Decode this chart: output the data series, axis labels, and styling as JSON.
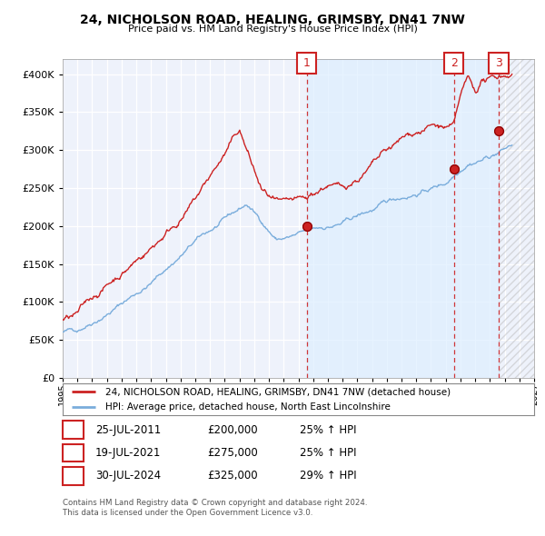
{
  "title": "24, NICHOLSON ROAD, HEALING, GRIMSBY, DN41 7NW",
  "subtitle": "Price paid vs. HM Land Registry's House Price Index (HPI)",
  "legend_line1": "24, NICHOLSON ROAD, HEALING, GRIMSBY, DN41 7NW (detached house)",
  "legend_line2": "HPI: Average price, detached house, North East Lincolnshire",
  "sales": [
    {
      "label": "1",
      "date_str": "25-JUL-2011",
      "price": 200000,
      "pct": "25%",
      "direction": "↑",
      "ref": "HPI",
      "x_year": 2011.56
    },
    {
      "label": "2",
      "date_str": "19-JUL-2021",
      "price": 275000,
      "pct": "25%",
      "direction": "↑",
      "ref": "HPI",
      "x_year": 2021.55
    },
    {
      "label": "3",
      "date_str": "30-JUL-2024",
      "price": 325000,
      "pct": "29%",
      "direction": "↑",
      "ref": "HPI",
      "x_year": 2024.58
    }
  ],
  "footnote1": "Contains HM Land Registry data © Crown copyright and database right 2024.",
  "footnote2": "This data is licensed under the Open Government Licence v3.0.",
  "hpi_color": "#7aaddc",
  "price_color": "#cc2222",
  "vline_color": "#cc2222",
  "shade_color": "#ddeeff",
  "hatch_color": "#cccccc",
  "ylim": [
    0,
    420000
  ],
  "xlim_start": 1995,
  "xlim_end": 2027,
  "yticks": [
    0,
    50000,
    100000,
    150000,
    200000,
    250000,
    300000,
    350000,
    400000
  ],
  "background_color": "#eef2fb"
}
